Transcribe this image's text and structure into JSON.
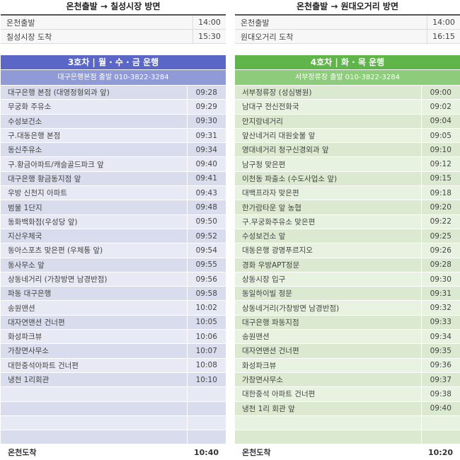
{
  "top_left": {
    "title": "온천출발 → 칠성시장 방면",
    "rows": [
      {
        "stop": "온천출발",
        "time": "14:00"
      },
      {
        "stop": "칠성시장 도착",
        "time": "15:30"
      }
    ]
  },
  "top_right": {
    "title": "온천출발 → 원대오거리 방면",
    "rows": [
      {
        "stop": "온천출발",
        "time": "14:00"
      },
      {
        "stop": "원대오거리 도착",
        "time": "16:15"
      }
    ]
  },
  "bus3": {
    "title": "3호차 | 월 · 수 · 금 운행",
    "subtitle": "대구은행본점 출발 010-3822-3284",
    "color": "#5b67c7",
    "sub_color": "#8f9ad6",
    "stops": [
      {
        "stop": "대구은행 본점 (대영정형외과 앞)",
        "time": "09:28"
      },
      {
        "stop": "무궁화 주유소",
        "time": "09:29"
      },
      {
        "stop": "수성보건소",
        "time": "09:30"
      },
      {
        "stop": "구.대동은행 본점",
        "time": "09:31"
      },
      {
        "stop": "동신주유소",
        "time": "09:34"
      },
      {
        "stop": "구.황금아파트/캐슬골드파크 앞",
        "time": "09:40"
      },
      {
        "stop": "대구은행 황금동지점 앞",
        "time": "09:41"
      },
      {
        "stop": "우방 신천지 아파트",
        "time": "09:43"
      },
      {
        "stop": "범물 1단지",
        "time": "09:48"
      },
      {
        "stop": "동화백화점(우성당 앞)",
        "time": "09:50"
      },
      {
        "stop": "지산우체국",
        "time": "09:52"
      },
      {
        "stop": "동아스포츠 맞은편 (우체통 앞)",
        "time": "09:54"
      },
      {
        "stop": "동사무소 앞",
        "time": "09:55"
      },
      {
        "stop": "상동네거리 (가창방면 남경반점)",
        "time": "09:56"
      },
      {
        "stop": "파동 대구은행",
        "time": "09:58"
      },
      {
        "stop": "송원맨션",
        "time": "10:02"
      },
      {
        "stop": "대자연맨션 건너편",
        "time": "10:05"
      },
      {
        "stop": "화성파크뷰",
        "time": "10:06"
      },
      {
        "stop": "가창면사무소",
        "time": "10:07"
      },
      {
        "stop": "대한중석아파트 건너편",
        "time": "10:08"
      },
      {
        "stop": "냉천 1리회관",
        "time": "10:10"
      },
      {
        "stop": "",
        "time": ""
      },
      {
        "stop": "",
        "time": ""
      },
      {
        "stop": "",
        "time": ""
      },
      {
        "stop": "",
        "time": ""
      }
    ],
    "final": {
      "stop": "온천도착",
      "time": "10:40"
    }
  },
  "bus4": {
    "title": "4호차 | 화 · 목 운행",
    "subtitle": "서부정류장 출발 010-3822-3284",
    "color": "#5fb54a",
    "sub_color": "#8ccc7a",
    "stops": [
      {
        "stop": "서부정류장 (성심병원)",
        "time": "09:00"
      },
      {
        "stop": "남대구 전신전화국",
        "time": "09:02"
      },
      {
        "stop": "안지랑네거리",
        "time": "09:04"
      },
      {
        "stop": "앞산네거리 대원숯불 앞",
        "time": "09:05"
      },
      {
        "stop": "영대네거리 청구신경외과 앞",
        "time": "09:10"
      },
      {
        "stop": "남구청 맞은편",
        "time": "09:12"
      },
      {
        "stop": "이천동 파출소 (수도사업소 앞)",
        "time": "09:15"
      },
      {
        "stop": "대백프라자 맞은편",
        "time": "09:18"
      },
      {
        "stop": "한가람타운 앞 농협",
        "time": "09:20"
      },
      {
        "stop": "구.무궁화주유소 맞은편",
        "time": "09:22"
      },
      {
        "stop": "수성보건소 앞",
        "time": "09:25"
      },
      {
        "stop": "대동은행 광명푸르지오",
        "time": "09:26"
      },
      {
        "stop": "경화 우방APT정문",
        "time": "09:28"
      },
      {
        "stop": "상동시장 입구",
        "time": "09:30"
      },
      {
        "stop": "동일하이빌 정문",
        "time": "09:31"
      },
      {
        "stop": "상동네거리(가창방면 남경반점)",
        "time": "09:32"
      },
      {
        "stop": "대구은행 파동지점",
        "time": "09:33"
      },
      {
        "stop": "송원맨션",
        "time": "09:34"
      },
      {
        "stop": "대자연맨션 건너편",
        "time": "09:35"
      },
      {
        "stop": "화성파크뷰",
        "time": "09:36"
      },
      {
        "stop": "가창면사무소",
        "time": "09:37"
      },
      {
        "stop": "대한중석 아파트 건너편",
        "time": "09:38"
      },
      {
        "stop": "냉천 1리 회관 앞",
        "time": "09:40"
      },
      {
        "stop": "",
        "time": ""
      },
      {
        "stop": "",
        "time": ""
      }
    ],
    "final": {
      "stop": "온천도착",
      "time": "10:20"
    }
  }
}
